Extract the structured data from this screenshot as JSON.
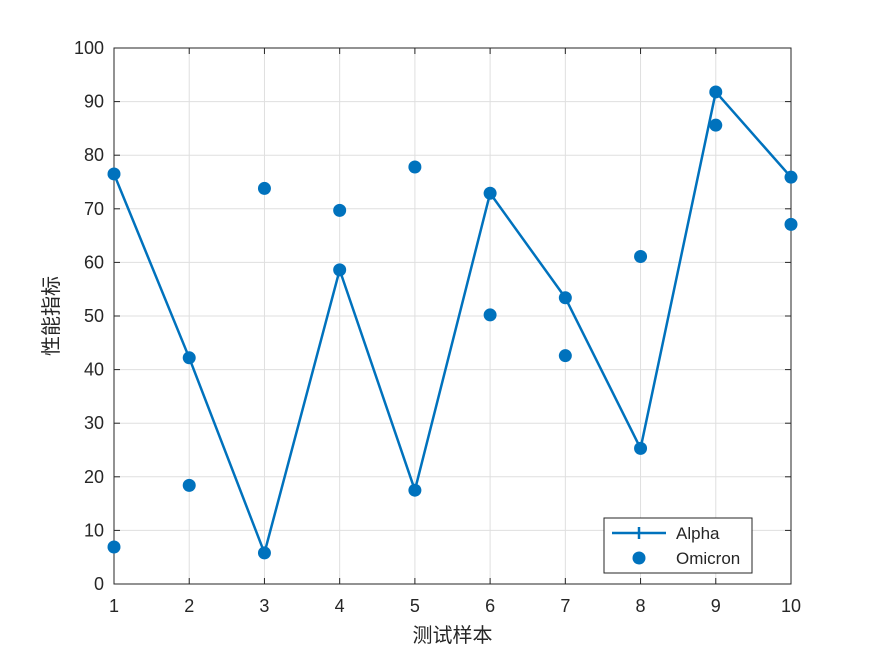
{
  "chart_data": {
    "type": "line",
    "title": "",
    "xlabel": "测试样本",
    "ylabel": "性能指标",
    "xlim": [
      1,
      10
    ],
    "ylim": [
      0,
      100
    ],
    "xticks": [
      "1",
      "2",
      "3",
      "4",
      "5",
      "6",
      "7",
      "8",
      "9",
      "10"
    ],
    "yticks": [
      "0",
      "10",
      "20",
      "30",
      "40",
      "50",
      "60",
      "70",
      "80",
      "90",
      "100"
    ],
    "grid": true,
    "legend_position": "bottom-right",
    "x": [
      1,
      2,
      3,
      4,
      5,
      6,
      7,
      8,
      9,
      10
    ],
    "series": [
      {
        "name": "Alpha",
        "style": "line-with-markers",
        "color": "#0072BD",
        "values": [
          76.5,
          42.2,
          5.8,
          58.6,
          17.5,
          72.9,
          53.4,
          25.3,
          91.8,
          75.9
        ]
      },
      {
        "name": "Omicron",
        "style": "markers-only",
        "color": "#0072BD",
        "values": [
          6.9,
          18.4,
          73.8,
          69.7,
          77.8,
          50.2,
          42.6,
          61.1,
          85.6,
          67.1
        ]
      }
    ]
  }
}
